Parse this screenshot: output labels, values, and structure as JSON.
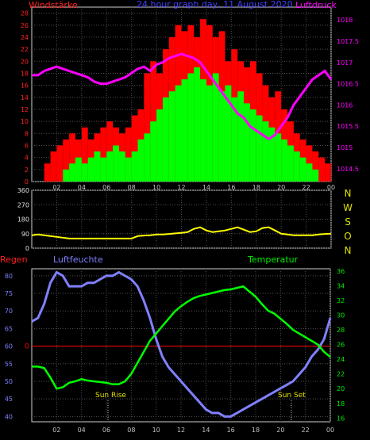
{
  "chart_data": [
    {
      "type": "bar",
      "title": "24 hour graph day, 11 August 2020",
      "left_axis_label": "Windstärke",
      "right_axis_label": "Luftdruck",
      "x_ticks": [
        "02",
        "04",
        "06",
        "08",
        "10",
        "12",
        "14",
        "16",
        "18",
        "20",
        "22",
        "00"
      ],
      "y_left_ticks": [
        "0",
        "2",
        "4",
        "6",
        "8",
        "10",
        "12",
        "14",
        "16",
        "18",
        "20",
        "22",
        "24",
        "26",
        "28"
      ],
      "ylim_left": [
        0,
        29
      ],
      "y_right_ticks": [
        "1014.5",
        "1015",
        "1015.5",
        "1016",
        "1016.5",
        "1017",
        "1017.5",
        "1018"
      ],
      "ylim_right": [
        1014.2,
        1018.3
      ],
      "grid": true,
      "series": [
        {
          "color": "#ff0000",
          "hours": [
            1.5,
            2,
            2.5,
            3,
            3.5,
            4,
            4.5,
            5,
            5.5,
            6,
            6.5,
            7,
            7.5,
            8,
            8.5,
            9,
            9.5,
            10,
            10.5,
            11,
            11.5,
            12,
            12.5,
            13,
            13.5,
            14,
            14.5,
            15,
            15.5,
            16,
            16.5,
            17,
            17.5,
            18,
            18.5,
            19,
            19.5,
            20,
            20.5,
            21,
            21.5,
            22,
            22.5,
            23,
            23.5,
            24
          ],
          "values": [
            3,
            5,
            6,
            7,
            8,
            7,
            9,
            7,
            8,
            9,
            10,
            9,
            8,
            9,
            11,
            12,
            18,
            20,
            18,
            22,
            24,
            26,
            25,
            26,
            24,
            27,
            26,
            24,
            25,
            20,
            22,
            20,
            19,
            20,
            18,
            16,
            14,
            15,
            12,
            10,
            8,
            7,
            6,
            5,
            4,
            3
          ]
        },
        {
          "color": "#00ff00",
          "hours": [
            3,
            3.5,
            4,
            4.5,
            5,
            5.5,
            6,
            6.5,
            7,
            7.5,
            8,
            8.5,
            9,
            9.5,
            10,
            10.5,
            11,
            11.5,
            12,
            12.5,
            13,
            13.5,
            14,
            14.5,
            15,
            15.5,
            16,
            16.5,
            17,
            17.5,
            18,
            18.5,
            19,
            19.5,
            20,
            20.5,
            21,
            21.5,
            22,
            22.5,
            23
          ],
          "values": [
            2,
            3,
            4,
            3,
            4,
            5,
            4,
            5,
            6,
            5,
            4,
            5,
            7,
            8,
            10,
            12,
            14,
            15,
            16,
            17,
            18,
            19,
            17,
            16,
            18,
            15,
            16,
            14,
            15,
            13,
            12,
            11,
            10,
            9,
            8,
            7,
            6,
            5,
            4,
            3,
            2
          ]
        },
        {
          "color": "#ff00ff",
          "hours": [
            0,
            0.5,
            1,
            1.5,
            2,
            2.5,
            3,
            3.5,
            4,
            4.5,
            5,
            5.5,
            6,
            6.5,
            7,
            7.5,
            8,
            8.5,
            9,
            9.5,
            10,
            10.5,
            11,
            11.5,
            12,
            12.5,
            13,
            13.5,
            14,
            14.5,
            15,
            15.5,
            16,
            16.5,
            17,
            17.5,
            18,
            18.5,
            19,
            19.5,
            20,
            20.5,
            21,
            21.5,
            22,
            22.5,
            23,
            23.5,
            24
          ],
          "values": [
            1016.7,
            1016.7,
            1016.8,
            1016.85,
            1016.9,
            1016.85,
            1016.8,
            1016.75,
            1016.7,
            1016.65,
            1016.55,
            1016.5,
            1016.5,
            1016.55,
            1016.6,
            1016.65,
            1016.75,
            1016.85,
            1016.9,
            1016.8,
            1016.95,
            1017.0,
            1017.1,
            1017.15,
            1017.2,
            1017.15,
            1017.1,
            1017.0,
            1016.8,
            1016.6,
            1016.4,
            1016.2,
            1016.0,
            1015.8,
            1015.7,
            1015.5,
            1015.4,
            1015.3,
            1015.2,
            1015.3,
            1015.5,
            1015.7,
            1016.0,
            1016.2,
            1016.4,
            1016.6,
            1016.7,
            1016.8,
            1016.6
          ]
        }
      ]
    },
    {
      "type": "line",
      "x_ticks": [
        "02",
        "04",
        "06",
        "08",
        "10",
        "12",
        "14",
        "16",
        "18",
        "20",
        "22",
        "00"
      ],
      "y_ticks": [
        "0",
        "90",
        "180",
        "270",
        "360"
      ],
      "ylim": [
        0,
        360
      ],
      "direction_labels": [
        "N",
        "W",
        "S",
        "O",
        "N"
      ],
      "series": [
        {
          "color": "#ffff00",
          "hours": [
            0,
            0.5,
            1,
            1.5,
            2,
            2.5,
            3,
            3.5,
            4,
            4.5,
            5,
            5.5,
            6,
            6.5,
            7,
            7.5,
            8,
            8.5,
            9,
            9.5,
            10,
            10.5,
            11,
            11.5,
            12,
            12.5,
            13,
            13.5,
            14,
            14.5,
            15,
            15.5,
            16,
            16.5,
            17,
            17.5,
            18,
            18.5,
            19,
            19.5,
            20,
            20.5,
            21,
            21.5,
            22,
            22.5,
            23,
            23.5,
            24
          ],
          "values": [
            80,
            85,
            80,
            75,
            70,
            65,
            60,
            60,
            60,
            60,
            60,
            60,
            60,
            60,
            60,
            60,
            60,
            75,
            78,
            80,
            85,
            85,
            88,
            92,
            95,
            100,
            120,
            130,
            110,
            100,
            105,
            110,
            120,
            130,
            115,
            100,
            105,
            125,
            130,
            110,
            90,
            85,
            80,
            80,
            80,
            80,
            85,
            88,
            90
          ]
        }
      ]
    },
    {
      "type": "line",
      "left_axis_label": "Regen",
      "humidity_label": "Luftfeuchte",
      "right_axis_label": "Temperatur",
      "x_ticks": [
        "02",
        "04",
        "06",
        "08",
        "10",
        "12",
        "14",
        "16",
        "18",
        "20",
        "22",
        "00"
      ],
      "y_left_ticks": [
        "40",
        "45",
        "50",
        "55",
        "60",
        "65",
        "70",
        "75",
        "80"
      ],
      "ylim_left": [
        38.5,
        82
      ],
      "y_right_ticks": [
        "16",
        "18",
        "20",
        "22",
        "24",
        "26",
        "28",
        "30",
        "32",
        "34",
        "36"
      ],
      "ylim_right": [
        15.5,
        36.3
      ],
      "rain_level_label": "0",
      "annotations": [
        "Sun Rise",
        "Sun Set"
      ],
      "series": [
        {
          "name": "Luftfeuchte",
          "color": "#8080ff",
          "hours": [
            0,
            0.5,
            1,
            1.5,
            2,
            2.5,
            3,
            3.5,
            4,
            4.5,
            5,
            5.5,
            6,
            6.5,
            7,
            7.5,
            8,
            8.5,
            9,
            9.5,
            10,
            10.5,
            11,
            11.5,
            12,
            12.5,
            13,
            13.5,
            14,
            14.5,
            15,
            15.5,
            16,
            16.5,
            17,
            17.5,
            18,
            18.5,
            19,
            19.5,
            20,
            20.5,
            21,
            21.5,
            22,
            22.5,
            23,
            23.5,
            24
          ],
          "values": [
            67,
            68,
            72,
            78,
            81,
            80,
            77,
            77,
            77,
            78,
            78,
            79,
            80,
            80,
            81,
            80,
            79,
            77,
            73,
            68,
            62,
            57,
            54,
            52,
            50,
            48,
            46,
            44,
            42,
            41,
            41,
            40,
            40,
            41,
            42,
            43,
            44,
            45,
            46,
            47,
            48,
            49,
            50,
            52,
            54,
            57,
            59,
            62,
            68
          ]
        },
        {
          "name": "Temperatur",
          "color": "#00ff00",
          "hours": [
            0,
            0.5,
            1,
            1.5,
            2,
            2.5,
            3,
            3.5,
            4,
            4.5,
            5,
            5.5,
            6,
            6.5,
            7,
            7.5,
            8,
            8.5,
            9,
            9.5,
            10,
            10.5,
            11,
            11.5,
            12,
            12.5,
            13,
            13.5,
            14,
            14.5,
            15,
            15.5,
            16,
            16.5,
            17,
            17.5,
            18,
            18.5,
            19,
            19.5,
            20,
            20.5,
            21,
            21.5,
            22,
            22.5,
            23,
            23.5,
            24
          ],
          "values": [
            23,
            23,
            22.8,
            21.5,
            20,
            20.2,
            20.8,
            21,
            21.3,
            21.1,
            21,
            20.9,
            20.8,
            20.6,
            20.6,
            21,
            22,
            23.5,
            25,
            26.5,
            27.5,
            28.5,
            29.5,
            30.5,
            31.2,
            31.8,
            32.3,
            32.6,
            32.8,
            33,
            33.2,
            33.4,
            33.5,
            33.7,
            33.9,
            33.2,
            32.5,
            31.5,
            30.6,
            30.2,
            29.5,
            28.8,
            28,
            27.5,
            27,
            26.5,
            26,
            25,
            24.3
          ]
        }
      ]
    }
  ]
}
